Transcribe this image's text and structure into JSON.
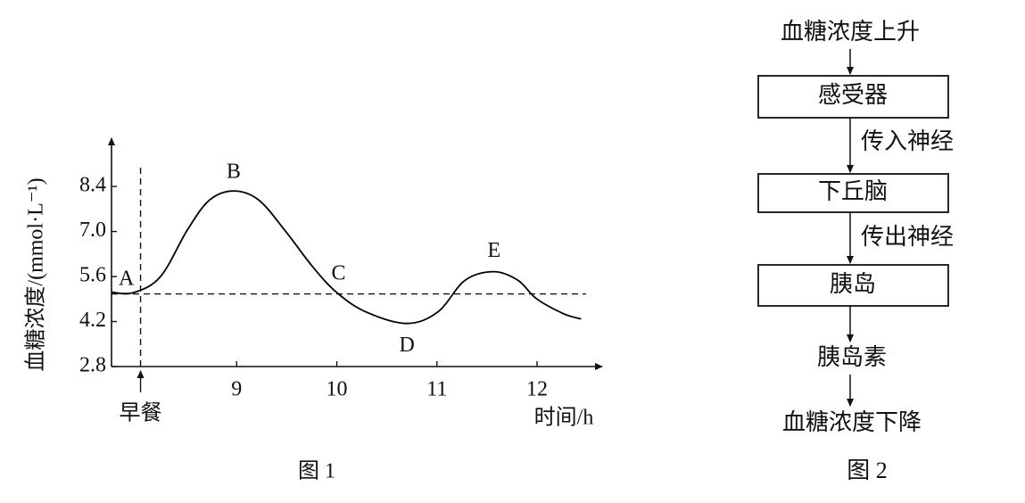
{
  "chart_data": {
    "type": "line",
    "x": [
      7.75,
      7.97,
      8.24,
      8.51,
      8.73,
      8.97,
      9.22,
      9.49,
      9.76,
      10.0,
      10.29,
      10.7,
      11.01,
      11.28,
      11.57,
      11.81,
      11.99,
      12.26,
      12.44
    ],
    "values": [
      5.11,
      5.1,
      5.6,
      7.06,
      7.98,
      8.26,
      7.98,
      7.0,
      5.9,
      5.1,
      4.5,
      4.14,
      4.5,
      5.48,
      5.75,
      5.48,
      4.92,
      4.45,
      4.28
    ],
    "color": "#000000",
    "xlim": [
      7.75,
      12.65
    ],
    "ylim": [
      2.8,
      9.9
    ],
    "xticks": [
      9,
      10,
      11,
      12
    ],
    "yticks": [
      2.8,
      4.2,
      5.6,
      {
        "value": 7,
        "label": "7.0"
      },
      8.4
    ],
    "ylabel": "血糖浓度/(mmol·L⁻¹)",
    "xlabel": "时间/h",
    "reference_line": {
      "y": 5.06
    },
    "breakfast": {
      "label": "早餐",
      "x": 8.04
    },
    "annotations": [
      {
        "text": "A",
        "x": 7.97,
        "y": 5.1
      },
      {
        "text": "B",
        "x": 8.97,
        "y": 8.26
      },
      {
        "text": "C",
        "x": 10.0,
        "y": 5.1
      },
      {
        "text": "D",
        "x": 10.7,
        "y": 4.14
      },
      {
        "text": "E",
        "x": 11.57,
        "y": 5.75
      }
    ],
    "caption": "图 1"
  },
  "flowchart": {
    "start": "血糖浓度上升",
    "boxes": [
      "感受器",
      "下丘脑",
      "胰岛"
    ],
    "edge_labels": [
      "传入神经",
      "传出神经"
    ],
    "hormone": "胰岛素",
    "end": "血糖浓度下降",
    "caption": "图 2"
  }
}
